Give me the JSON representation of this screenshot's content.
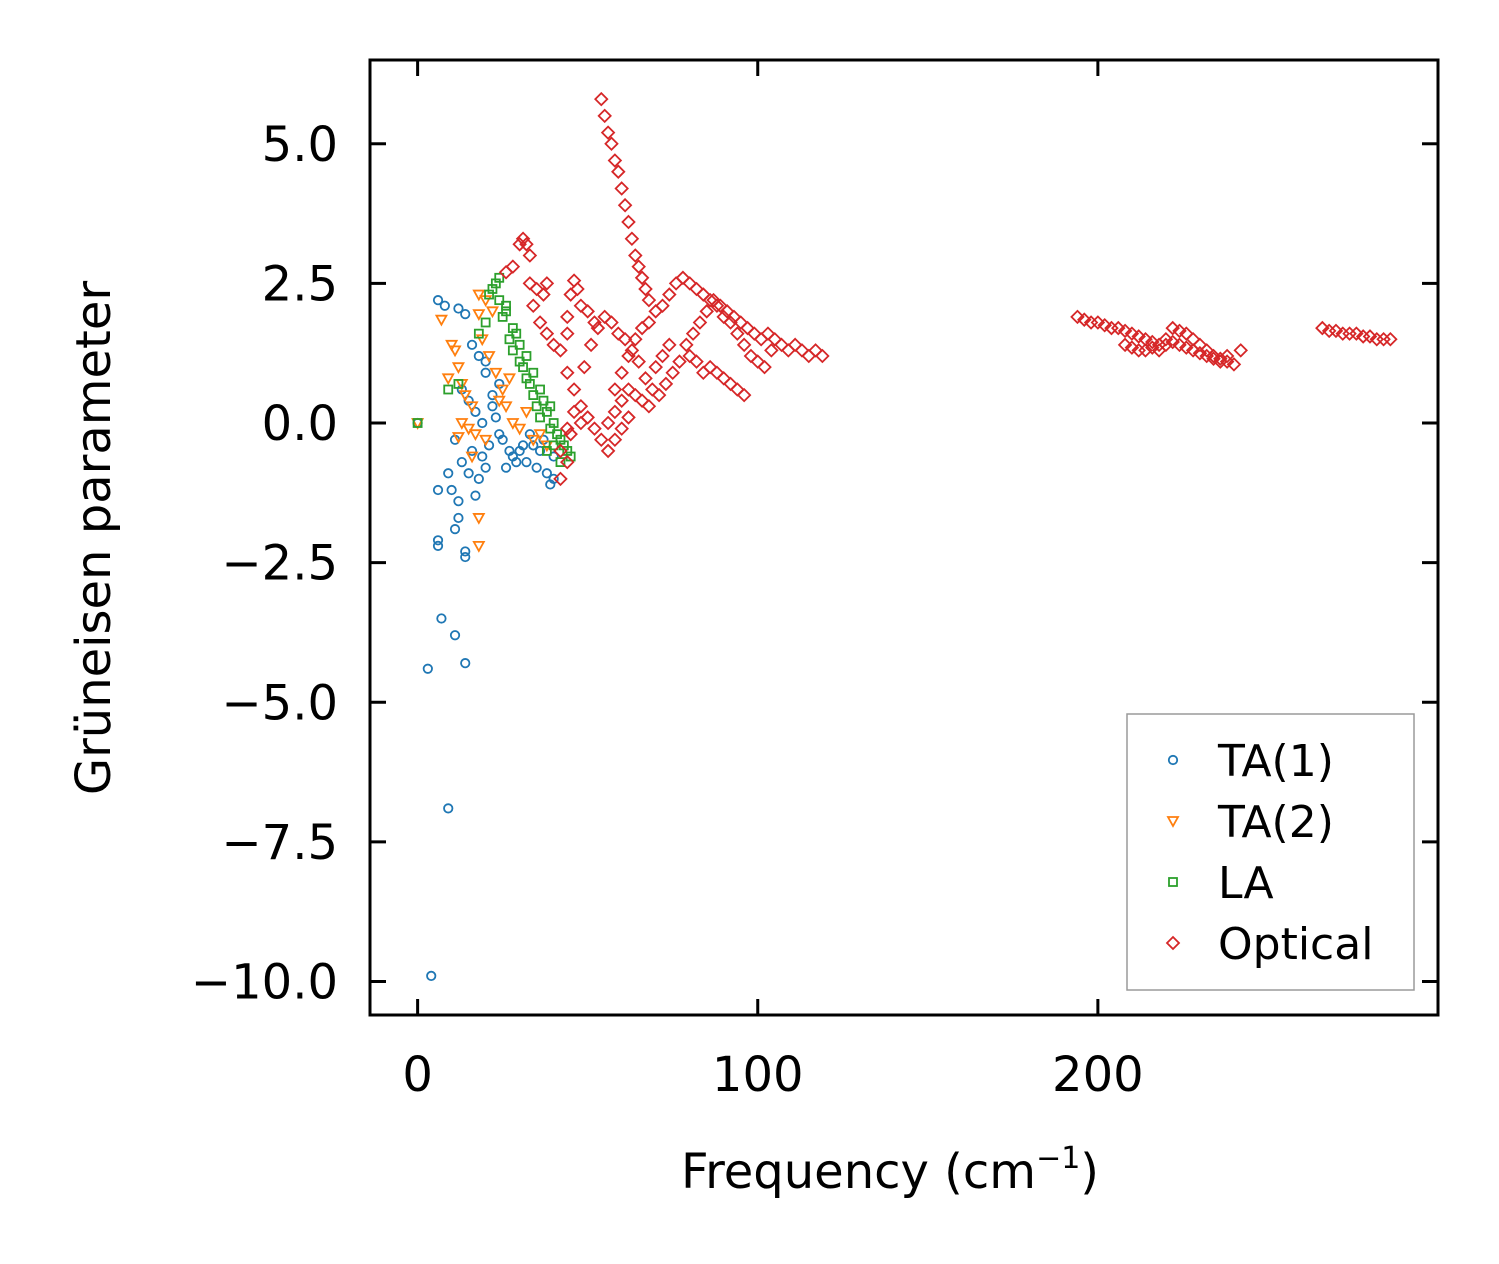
{
  "chart_data": {
    "type": "scatter",
    "xlabel": "Frequency (cm",
    "xlabel_sup": "−1",
    "xlabel_close": ")",
    "ylabel": "Grüneisen parameter",
    "xlim": [
      -14,
      300
    ],
    "ylim": [
      -10.6,
      6.5
    ],
    "xticks": [
      {
        "value": 0,
        "label": "0"
      },
      {
        "value": 100,
        "label": "100"
      },
      {
        "value": 200,
        "label": "200"
      }
    ],
    "yticks": [
      {
        "value": 5,
        "label": "5.0"
      },
      {
        "value": 2.5,
        "label": "2.5"
      },
      {
        "value": 0,
        "label": "0.0"
      },
      {
        "value": -2.5,
        "label": "−2.5"
      },
      {
        "value": -5,
        "label": "−5.0"
      },
      {
        "value": -7.5,
        "label": "−7.5"
      },
      {
        "value": -10,
        "label": "−10.0"
      }
    ],
    "legend_position": "lower-right",
    "series": [
      {
        "name": "TA(1)",
        "marker": "circle",
        "color": "#1f77b4",
        "points": [
          [
            6,
            2.2
          ],
          [
            8,
            2.1
          ],
          [
            12,
            2.05
          ],
          [
            14,
            1.95
          ],
          [
            16,
            1.4
          ],
          [
            18,
            1.2
          ],
          [
            20,
            1.1
          ],
          [
            13,
            0.6
          ],
          [
            15,
            0.4
          ],
          [
            17,
            0.2
          ],
          [
            19,
            0.0
          ],
          [
            22,
            0.3
          ],
          [
            24,
            -0.2
          ],
          [
            11,
            -0.3
          ],
          [
            13,
            -0.7
          ],
          [
            15,
            -0.9
          ],
          [
            9,
            -0.9
          ],
          [
            10,
            -1.2
          ],
          [
            6,
            -1.2
          ],
          [
            12,
            -1.4
          ],
          [
            12,
            -1.7
          ],
          [
            11,
            -1.9
          ],
          [
            6,
            -2.1
          ],
          [
            6,
            -2.2
          ],
          [
            14,
            -2.3
          ],
          [
            14,
            -2.4
          ],
          [
            7,
            -3.5
          ],
          [
            11,
            -3.8
          ],
          [
            3,
            -4.4
          ],
          [
            14,
            -4.3
          ],
          [
            9,
            -6.9
          ],
          [
            4,
            -9.9
          ],
          [
            0,
            0.0
          ],
          [
            18,
            -1.0
          ],
          [
            20,
            -0.8
          ],
          [
            17,
            -1.3
          ],
          [
            19,
            -0.6
          ],
          [
            21,
            -0.4
          ],
          [
            23,
            0.1
          ],
          [
            25,
            -0.3
          ],
          [
            26,
            -0.8
          ],
          [
            28,
            -0.6
          ],
          [
            30,
            -0.5
          ],
          [
            32,
            -0.7
          ],
          [
            34,
            -0.4
          ],
          [
            36,
            -0.5
          ],
          [
            38,
            -0.9
          ],
          [
            39,
            -1.1
          ],
          [
            40,
            -1.0
          ],
          [
            40,
            -0.6
          ],
          [
            37,
            -0.3
          ],
          [
            35,
            -0.8
          ],
          [
            33,
            -0.2
          ],
          [
            31,
            -0.4
          ],
          [
            29,
            -0.7
          ],
          [
            27,
            -0.5
          ],
          [
            24,
            0.7
          ],
          [
            22,
            0.5
          ],
          [
            20,
            0.9
          ],
          [
            16,
            -0.5
          ]
        ]
      },
      {
        "name": "TA(2)",
        "marker": "triangle-down",
        "color": "#ff7f0e",
        "points": [
          [
            0,
            0.0
          ],
          [
            7,
            1.85
          ],
          [
            10,
            1.4
          ],
          [
            11,
            1.3
          ],
          [
            12,
            1.0
          ],
          [
            9,
            0.8
          ],
          [
            13,
            0.7
          ],
          [
            14,
            0.5
          ],
          [
            16,
            0.3
          ],
          [
            13,
            0.0
          ],
          [
            15,
            -0.1
          ],
          [
            12,
            -0.25
          ],
          [
            17,
            -0.2
          ],
          [
            18,
            1.95
          ],
          [
            18,
            2.3
          ],
          [
            20,
            2.2
          ],
          [
            22,
            2.0
          ],
          [
            19,
            1.5
          ],
          [
            21,
            1.2
          ],
          [
            23,
            0.9
          ],
          [
            25,
            0.6
          ],
          [
            26,
            0.3
          ],
          [
            28,
            0.0
          ],
          [
            30,
            -0.1
          ],
          [
            32,
            0.2
          ],
          [
            34,
            -0.3
          ],
          [
            36,
            -0.2
          ],
          [
            38,
            -0.4
          ],
          [
            27,
            0.8
          ],
          [
            24,
            0.4
          ],
          [
            18,
            -1.7
          ],
          [
            18,
            -2.2
          ],
          [
            16,
            -0.6
          ],
          [
            20,
            -0.3
          ]
        ]
      },
      {
        "name": "LA",
        "marker": "square",
        "color": "#2ca02c",
        "points": [
          [
            0,
            0.0
          ],
          [
            9,
            0.6
          ],
          [
            12,
            0.7
          ],
          [
            18,
            1.6
          ],
          [
            20,
            1.8
          ],
          [
            21,
            2.3
          ],
          [
            22,
            2.4
          ],
          [
            23,
            2.5
          ],
          [
            24,
            2.6
          ],
          [
            24,
            2.2
          ],
          [
            25,
            1.9
          ],
          [
            26,
            2.0
          ],
          [
            27,
            1.5
          ],
          [
            28,
            1.3
          ],
          [
            29,
            1.6
          ],
          [
            30,
            1.1
          ],
          [
            31,
            1.0
          ],
          [
            32,
            0.8
          ],
          [
            33,
            0.7
          ],
          [
            34,
            0.5
          ],
          [
            35,
            0.3
          ],
          [
            36,
            0.1
          ],
          [
            37,
            0.4
          ],
          [
            38,
            0.2
          ],
          [
            39,
            -0.1
          ],
          [
            40,
            0.0
          ],
          [
            41,
            -0.2
          ],
          [
            42,
            -0.3
          ],
          [
            43,
            -0.4
          ],
          [
            44,
            -0.5
          ],
          [
            45,
            -0.6
          ],
          [
            42,
            -0.7
          ],
          [
            40,
            -0.4
          ],
          [
            38,
            -0.5
          ],
          [
            36,
            0.6
          ],
          [
            34,
            0.9
          ],
          [
            32,
            1.2
          ],
          [
            30,
            1.4
          ],
          [
            28,
            1.7
          ],
          [
            26,
            2.1
          ],
          [
            39,
            0.3
          ]
        ]
      },
      {
        "name": "Optical",
        "marker": "diamond",
        "color": "#d62728",
        "points": [
          [
            26,
            2.7
          ],
          [
            28,
            2.8
          ],
          [
            30,
            3.2
          ],
          [
            31,
            3.3
          ],
          [
            32,
            3.2
          ],
          [
            33,
            3.0
          ],
          [
            33,
            2.5
          ],
          [
            35,
            2.4
          ],
          [
            37,
            2.3
          ],
          [
            38,
            2.5
          ],
          [
            34,
            2.1
          ],
          [
            36,
            1.8
          ],
          [
            38,
            1.6
          ],
          [
            40,
            1.4
          ],
          [
            42,
            1.3
          ],
          [
            44,
            1.6
          ],
          [
            44,
            1.9
          ],
          [
            45,
            2.3
          ],
          [
            46,
            2.55
          ],
          [
            47,
            2.4
          ],
          [
            48,
            2.1
          ],
          [
            44,
            0.9
          ],
          [
            46,
            0.6
          ],
          [
            48,
            0.3
          ],
          [
            50,
            0.1
          ],
          [
            52,
            -0.1
          ],
          [
            54,
            -0.3
          ],
          [
            56,
            0.0
          ],
          [
            58,
            0.2
          ],
          [
            60,
            0.4
          ],
          [
            62,
            0.6
          ],
          [
            42,
            -0.5
          ],
          [
            44,
            -0.7
          ],
          [
            42,
            -1.0
          ],
          [
            45,
            -0.2
          ],
          [
            49,
            1.0
          ],
          [
            51,
            1.4
          ],
          [
            53,
            1.7
          ],
          [
            55,
            1.9
          ],
          [
            57,
            1.8
          ],
          [
            59,
            1.6
          ],
          [
            61,
            1.5
          ],
          [
            63,
            1.3
          ],
          [
            65,
            1.1
          ],
          [
            67,
            0.8
          ],
          [
            69,
            0.6
          ],
          [
            71,
            0.5
          ],
          [
            73,
            0.7
          ],
          [
            75,
            0.9
          ],
          [
            77,
            1.1
          ],
          [
            79,
            1.4
          ],
          [
            81,
            1.6
          ],
          [
            83,
            1.8
          ],
          [
            85,
            2.0
          ],
          [
            87,
            2.2
          ],
          [
            89,
            2.1
          ],
          [
            91,
            2.0
          ],
          [
            93,
            1.9
          ],
          [
            95,
            1.8
          ],
          [
            97,
            1.7
          ],
          [
            99,
            1.6
          ],
          [
            101,
            1.5
          ],
          [
            103,
            1.6
          ],
          [
            105,
            1.5
          ],
          [
            107,
            1.4
          ],
          [
            109,
            1.3
          ],
          [
            111,
            1.4
          ],
          [
            113,
            1.3
          ],
          [
            115,
            1.2
          ],
          [
            117,
            1.3
          ],
          [
            119,
            1.2
          ],
          [
            54,
            5.8
          ],
          [
            55,
            5.5
          ],
          [
            56,
            5.2
          ],
          [
            57,
            5.0
          ],
          [
            58,
            4.7
          ],
          [
            59,
            4.5
          ],
          [
            60,
            4.2
          ],
          [
            61,
            3.9
          ],
          [
            62,
            3.6
          ],
          [
            63,
            3.3
          ],
          [
            64,
            3.0
          ],
          [
            65,
            2.8
          ],
          [
            66,
            2.6
          ],
          [
            67,
            2.4
          ],
          [
            68,
            2.2
          ],
          [
            70,
            2.0
          ],
          [
            72,
            2.1
          ],
          [
            74,
            2.3
          ],
          [
            76,
            2.5
          ],
          [
            78,
            2.6
          ],
          [
            80,
            2.5
          ],
          [
            82,
            2.4
          ],
          [
            84,
            2.3
          ],
          [
            86,
            2.2
          ],
          [
            88,
            2.1
          ],
          [
            90,
            1.9
          ],
          [
            92,
            1.8
          ],
          [
            94,
            1.6
          ],
          [
            96,
            1.4
          ],
          [
            98,
            1.2
          ],
          [
            100,
            1.1
          ],
          [
            102,
            1.0
          ],
          [
            104,
            1.3
          ],
          [
            86,
            1.0
          ],
          [
            88,
            0.9
          ],
          [
            90,
            0.8
          ],
          [
            92,
            0.7
          ],
          [
            94,
            0.6
          ],
          [
            96,
            0.5
          ],
          [
            80,
            1.2
          ],
          [
            82,
            1.1
          ],
          [
            84,
            0.9
          ],
          [
            70,
            1.0
          ],
          [
            72,
            1.2
          ],
          [
            74,
            1.4
          ],
          [
            64,
            0.5
          ],
          [
            66,
            0.4
          ],
          [
            68,
            0.3
          ],
          [
            58,
            0.6
          ],
          [
            60,
            0.9
          ],
          [
            62,
            1.2
          ],
          [
            64,
            1.5
          ],
          [
            66,
            1.7
          ],
          [
            68,
            1.8
          ],
          [
            50,
            2.0
          ],
          [
            52,
            1.8
          ],
          [
            48,
            0.0
          ],
          [
            46,
            0.2
          ],
          [
            44,
            -0.1
          ],
          [
            56,
            -0.5
          ],
          [
            58,
            -0.3
          ],
          [
            60,
            -0.1
          ],
          [
            62,
            0.1
          ],
          [
            194,
            1.9
          ],
          [
            196,
            1.85
          ],
          [
            198,
            1.8
          ],
          [
            200,
            1.8
          ],
          [
            202,
            1.75
          ],
          [
            204,
            1.7
          ],
          [
            206,
            1.7
          ],
          [
            208,
            1.65
          ],
          [
            210,
            1.6
          ],
          [
            212,
            1.55
          ],
          [
            214,
            1.5
          ],
          [
            216,
            1.45
          ],
          [
            218,
            1.4
          ],
          [
            220,
            1.5
          ],
          [
            222,
            1.7
          ],
          [
            224,
            1.65
          ],
          [
            226,
            1.6
          ],
          [
            228,
            1.5
          ],
          [
            230,
            1.4
          ],
          [
            232,
            1.3
          ],
          [
            234,
            1.2
          ],
          [
            236,
            1.15
          ],
          [
            238,
            1.1
          ],
          [
            240,
            1.05
          ],
          [
            242,
            1.3
          ],
          [
            208,
            1.4
          ],
          [
            210,
            1.35
          ],
          [
            212,
            1.3
          ],
          [
            214,
            1.3
          ],
          [
            216,
            1.35
          ],
          [
            218,
            1.3
          ],
          [
            220,
            1.4
          ],
          [
            222,
            1.45
          ],
          [
            224,
            1.4
          ],
          [
            226,
            1.35
          ],
          [
            228,
            1.3
          ],
          [
            230,
            1.25
          ],
          [
            232,
            1.2
          ],
          [
            234,
            1.15
          ],
          [
            236,
            1.1
          ],
          [
            238,
            1.2
          ],
          [
            266,
            1.7
          ],
          [
            268,
            1.65
          ],
          [
            270,
            1.65
          ],
          [
            272,
            1.6
          ],
          [
            274,
            1.6
          ],
          [
            276,
            1.6
          ],
          [
            278,
            1.55
          ],
          [
            280,
            1.55
          ],
          [
            282,
            1.5
          ],
          [
            284,
            1.5
          ],
          [
            286,
            1.5
          ]
        ]
      }
    ]
  }
}
